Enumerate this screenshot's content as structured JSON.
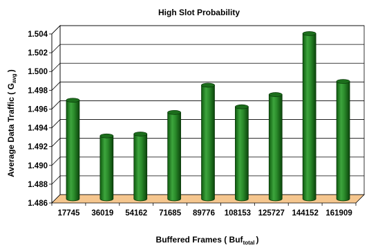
{
  "chart_data": {
    "type": "bar",
    "title": "High Slot Probability",
    "xlabel": "Buffered Frames ( Buf",
    "xlabel_sub": "total",
    "xlabel_close": ")",
    "ylabel": "Average Data Traffic ( G",
    "ylabel_sub": "avg",
    "ylabel_close": ")",
    "categories": [
      "17745",
      "36019",
      "54162",
      "71685",
      "89776",
      "108153",
      "125727",
      "144152",
      "161909"
    ],
    "values": [
      1.4965,
      1.4927,
      1.4929,
      1.4952,
      1.4981,
      1.4958,
      1.4971,
      1.5036,
      1.4985
    ],
    "ylim": [
      1.486,
      1.504
    ],
    "yticks": [
      "1.486",
      "1.488",
      "1.490",
      "1.492",
      "1.494",
      "1.496",
      "1.498",
      "1.500",
      "1.502",
      "1.504"
    ],
    "grid": true,
    "legend": "none",
    "colors": {
      "bar_front": "#2f8f2f",
      "bar_dark": "#0e4f0e",
      "bar_top": "#1c6e1c",
      "floor": "#f5c68e"
    }
  }
}
